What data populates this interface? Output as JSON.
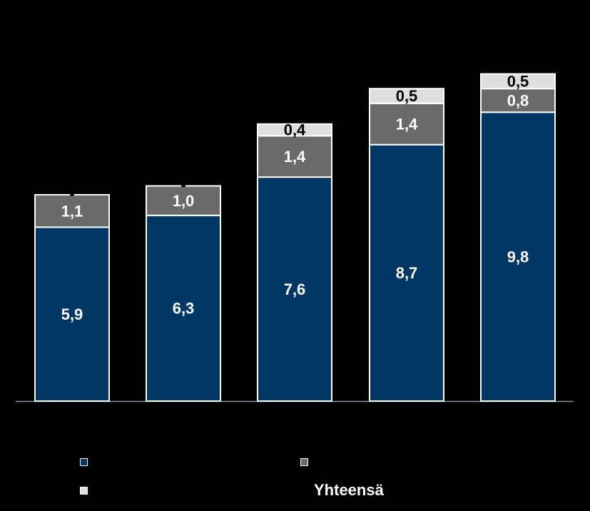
{
  "chart_data": {
    "type": "bar",
    "stacked": true,
    "categories": [
      "",
      "",
      "",
      "",
      ""
    ],
    "series": [
      {
        "color": "#003764",
        "values": [
          5.9,
          6.3,
          7.6,
          8.7,
          9.8
        ],
        "labels": [
          "5,9",
          "6,3",
          "7,6",
          "8,7",
          "9,8"
        ]
      },
      {
        "color": "#6a6a6a",
        "values": [
          1.1,
          1.0,
          1.4,
          1.4,
          0.8
        ],
        "labels": [
          "1,1",
          "1,0",
          "1,4",
          "1,4",
          "0,8"
        ]
      },
      {
        "color": "#dedede",
        "values": [
          0,
          0,
          0.4,
          0.5,
          0.5
        ],
        "labels": [
          "-",
          "-",
          "0,4",
          "0,5",
          "0,5"
        ]
      }
    ],
    "legend": {
      "items": [
        {
          "label": "",
          "color": "#003764"
        },
        {
          "label": "",
          "color": "#6a6a6a"
        },
        {
          "label": "",
          "color": "#dedede"
        },
        {
          "label": "Yhteensä",
          "color": ""
        }
      ],
      "position": "bottom"
    },
    "ylim": [
      0,
      12
    ],
    "grid": false,
    "title": "",
    "xlabel": "",
    "ylabel": ""
  }
}
